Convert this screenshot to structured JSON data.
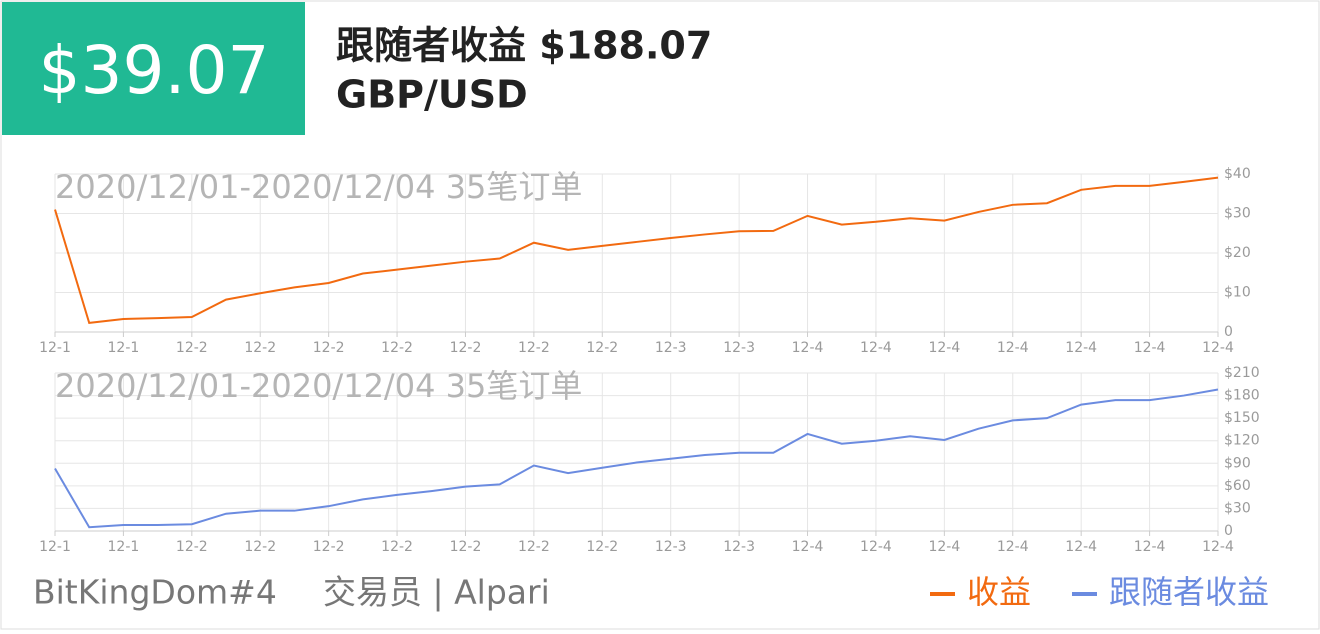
{
  "header": {
    "value": "$39.07",
    "title": "跟随者收益 $188.07",
    "pair": "GBP/USD"
  },
  "chart_data": [
    {
      "type": "line",
      "annotation": "2020/12/01-2020/12/04 35笔订单",
      "categories": [
        "12-1",
        null,
        "12-1",
        null,
        "12-2",
        null,
        "12-2",
        null,
        "12-2",
        null,
        "12-2",
        null,
        "12-2",
        null,
        "12-2",
        null,
        "12-2",
        null,
        "12-3",
        null,
        "12-3",
        null,
        "12-4",
        null,
        "12-4",
        null,
        "12-4",
        null,
        "12-4",
        null,
        "12-4",
        null,
        "12-4",
        null,
        "12-4"
      ],
      "series": [
        {
          "name": "收益",
          "color": "#f26a10",
          "values": [
            31,
            2.3,
            3.3,
            3.5,
            3.8,
            8.2,
            9.8,
            11.3,
            12.4,
            14.8,
            15.8,
            16.8,
            17.8,
            18.6,
            22.6,
            20.8,
            21.8,
            22.8,
            23.8,
            24.7,
            25.5,
            25.6,
            29.4,
            27.2,
            27.9,
            28.8,
            28.2,
            30.4,
            32.2,
            32.6,
            36.0,
            37.0,
            37.0,
            38.0,
            39.07
          ]
        }
      ],
      "ylim": [
        0,
        40
      ],
      "yticks": [
        0,
        {
          "value": 10,
          "label": "$10"
        },
        {
          "value": 20,
          "label": "$20"
        },
        {
          "value": 30,
          "label": "$30"
        },
        {
          "value": 40,
          "label": "$40"
        }
      ],
      "grid": true
    },
    {
      "type": "line",
      "annotation": "2020/12/01-2020/12/04 35笔订单",
      "categories": [
        "12-1",
        null,
        "12-1",
        null,
        "12-2",
        null,
        "12-2",
        null,
        "12-2",
        null,
        "12-2",
        null,
        "12-2",
        null,
        "12-2",
        null,
        "12-2",
        null,
        "12-3",
        null,
        "12-3",
        null,
        "12-4",
        null,
        "12-4",
        null,
        "12-4",
        null,
        "12-4",
        null,
        "12-4",
        null,
        "12-4",
        null,
        "12-4"
      ],
      "series": [
        {
          "name": "跟随者收益",
          "color": "#6b8be0",
          "values": [
            83,
            5,
            8,
            8,
            9,
            23,
            27,
            27,
            33,
            42,
            48,
            53,
            59,
            62,
            87,
            77,
            84,
            91,
            96,
            101,
            104,
            104,
            129,
            116,
            120,
            126,
            121,
            136,
            147,
            150,
            168,
            174,
            174,
            180,
            188.07
          ]
        }
      ],
      "ylim": [
        0,
        210
      ],
      "yticks": [
        0,
        {
          "value": 30,
          "label": "$30"
        },
        {
          "value": 60,
          "label": "$60"
        },
        {
          "value": 90,
          "label": "$90"
        },
        {
          "value": 120,
          "label": "$120"
        },
        {
          "value": 150,
          "label": "$150"
        },
        {
          "value": 180,
          "label": "$180"
        },
        {
          "value": 210,
          "label": "$210"
        }
      ],
      "grid": true
    }
  ],
  "footer": {
    "trader": "BitKingDom#4",
    "role": "交易员 | Alpari"
  }
}
